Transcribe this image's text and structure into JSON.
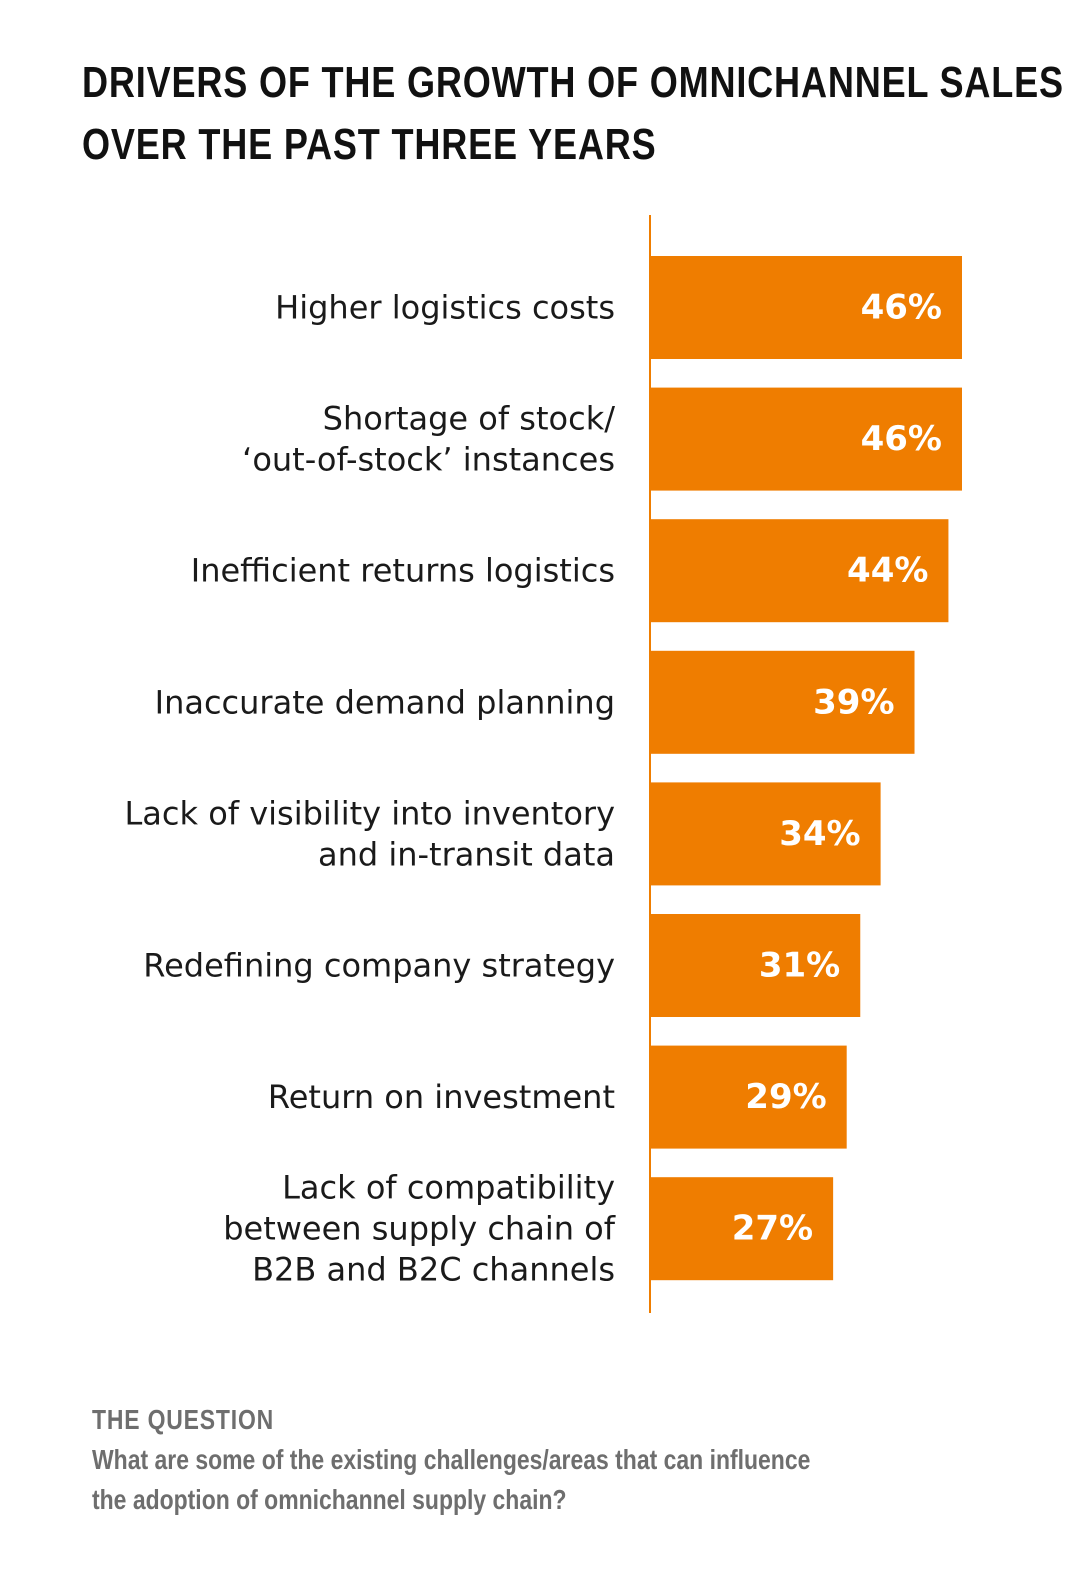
{
  "title_lines": [
    "DRIVERS OF THE GROWTH OF OMNICHANNEL SALES",
    "OVER THE PAST THREE YEARS"
  ],
  "chart_data": {
    "type": "bar",
    "orientation": "horizontal",
    "categories": [
      [
        "Higher logistics costs"
      ],
      [
        "Shortage of stock/",
        "‘out-of-stock’ instances"
      ],
      [
        "Inefficient returns logistics"
      ],
      [
        "Inaccurate demand planning"
      ],
      [
        "Lack of visibility into inventory",
        "and in-transit data"
      ],
      [
        "Redefining company strategy"
      ],
      [
        "Return on investment"
      ],
      [
        "Lack of compatibility",
        "between supply chain of",
        "B2B and B2C channels"
      ]
    ],
    "values": [
      46,
      46,
      44,
      39,
      34,
      31,
      29,
      27
    ],
    "value_labels": [
      "46%",
      "46%",
      "44%",
      "39%",
      "34%",
      "31%",
      "29%",
      "27%"
    ],
    "bar_color": "#ef7d00",
    "axis_color": "#ef7d00",
    "unit": "%"
  },
  "question": {
    "heading": "THE QUESTION",
    "lines": [
      "What are some of the existing challenges/areas that can influence",
      "the adoption of omnichannel supply chain?"
    ]
  }
}
